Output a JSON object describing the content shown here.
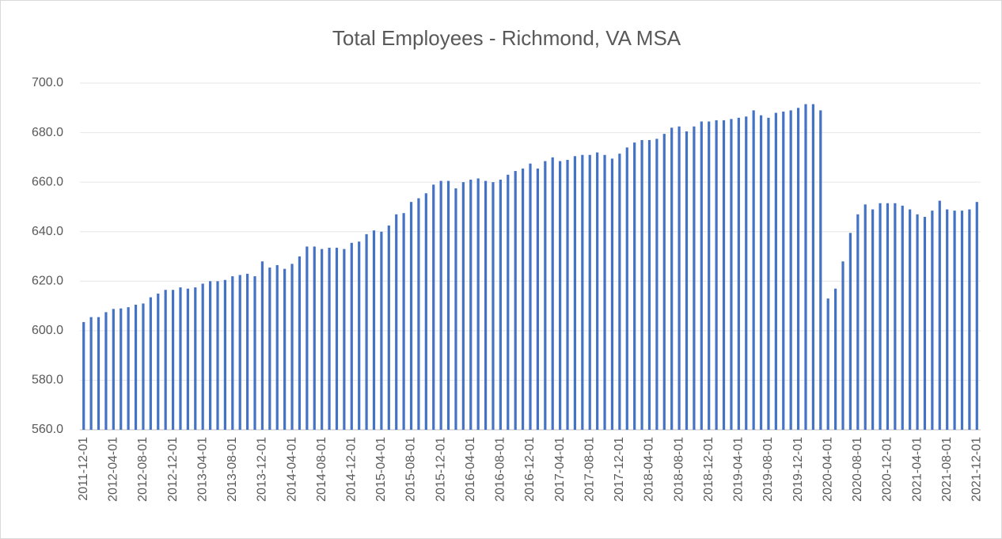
{
  "chart_data": {
    "type": "bar",
    "title": "Total Employees - Richmond, VA MSA",
    "color": "#4472c4",
    "grid": true,
    "ylim": [
      560,
      700
    ],
    "yticks": [
      {
        "value": 560,
        "label": "560.0"
      },
      {
        "value": 580,
        "label": "580.0"
      },
      {
        "value": 600,
        "label": "600.0"
      },
      {
        "value": 620,
        "label": "620.0"
      },
      {
        "value": 640,
        "label": "640.0"
      },
      {
        "value": 660,
        "label": "660.0"
      },
      {
        "value": 680,
        "label": "680.0"
      },
      {
        "value": 700,
        "label": "700.0"
      }
    ],
    "categories": [
      "2011-12-01",
      null,
      null,
      null,
      "2012-04-01",
      null,
      null,
      null,
      "2012-08-01",
      null,
      null,
      null,
      "2012-12-01",
      null,
      null,
      null,
      "2013-04-01",
      null,
      null,
      null,
      "2013-08-01",
      null,
      null,
      null,
      "2013-12-01",
      null,
      null,
      null,
      "2014-04-01",
      null,
      null,
      null,
      "2014-08-01",
      null,
      null,
      null,
      "2014-12-01",
      null,
      null,
      null,
      "2015-04-01",
      null,
      null,
      null,
      "2015-08-01",
      null,
      null,
      null,
      "2015-12-01",
      null,
      null,
      null,
      "2016-04-01",
      null,
      null,
      null,
      "2016-08-01",
      null,
      null,
      null,
      "2016-12-01",
      null,
      null,
      null,
      "2017-04-01",
      null,
      null,
      null,
      "2017-08-01",
      null,
      null,
      null,
      "2017-12-01",
      null,
      null,
      null,
      "2018-04-01",
      null,
      null,
      null,
      "2018-08-01",
      null,
      null,
      null,
      "2018-12-01",
      null,
      null,
      null,
      "2019-04-01",
      null,
      null,
      null,
      "2019-08-01",
      null,
      null,
      null,
      "2019-12-01",
      null,
      null,
      null,
      "2020-04-01",
      null,
      null,
      null,
      "2020-08-01",
      null,
      null,
      null,
      "2020-12-01",
      null,
      null,
      null,
      "2021-04-01",
      null,
      null,
      null,
      "2021-08-01",
      null,
      null,
      null,
      "2021-12-01"
    ],
    "values": [
      603.5,
      605.5,
      605.5,
      607.5,
      608.8,
      609,
      609.5,
      610.5,
      611,
      613.5,
      615,
      616.5,
      616.5,
      617.5,
      617,
      617.5,
      619,
      620,
      620,
      620.5,
      622,
      622.5,
      623,
      622,
      628,
      625.5,
      626.5,
      625,
      627,
      630,
      634,
      634,
      633,
      633.5,
      633.5,
      633,
      635.5,
      636,
      639,
      640.5,
      640,
      642.5,
      647,
      647.5,
      652,
      653.5,
      655.5,
      659,
      660.5,
      660.5,
      657.5,
      660,
      661,
      661.5,
      660.5,
      660,
      661,
      663,
      664.5,
      665.5,
      667.5,
      665.5,
      668.5,
      670,
      668.5,
      669,
      670.5,
      671,
      671,
      672,
      671,
      669.5,
      671.5,
      674,
      676,
      677,
      677,
      677.5,
      679.5,
      682,
      682.5,
      680.5,
      682.5,
      684.5,
      684.5,
      685,
      685,
      685.5,
      686,
      686.5,
      689,
      687,
      686,
      688,
      688.5,
      689,
      690,
      691.5,
      691.5,
      689,
      613,
      617,
      628,
      639.5,
      647,
      651,
      649,
      651.5,
      651.5,
      651.5,
      650.5,
      649,
      647,
      646,
      648.5,
      652.5,
      649,
      648.5,
      648.5,
      649,
      652
    ]
  }
}
